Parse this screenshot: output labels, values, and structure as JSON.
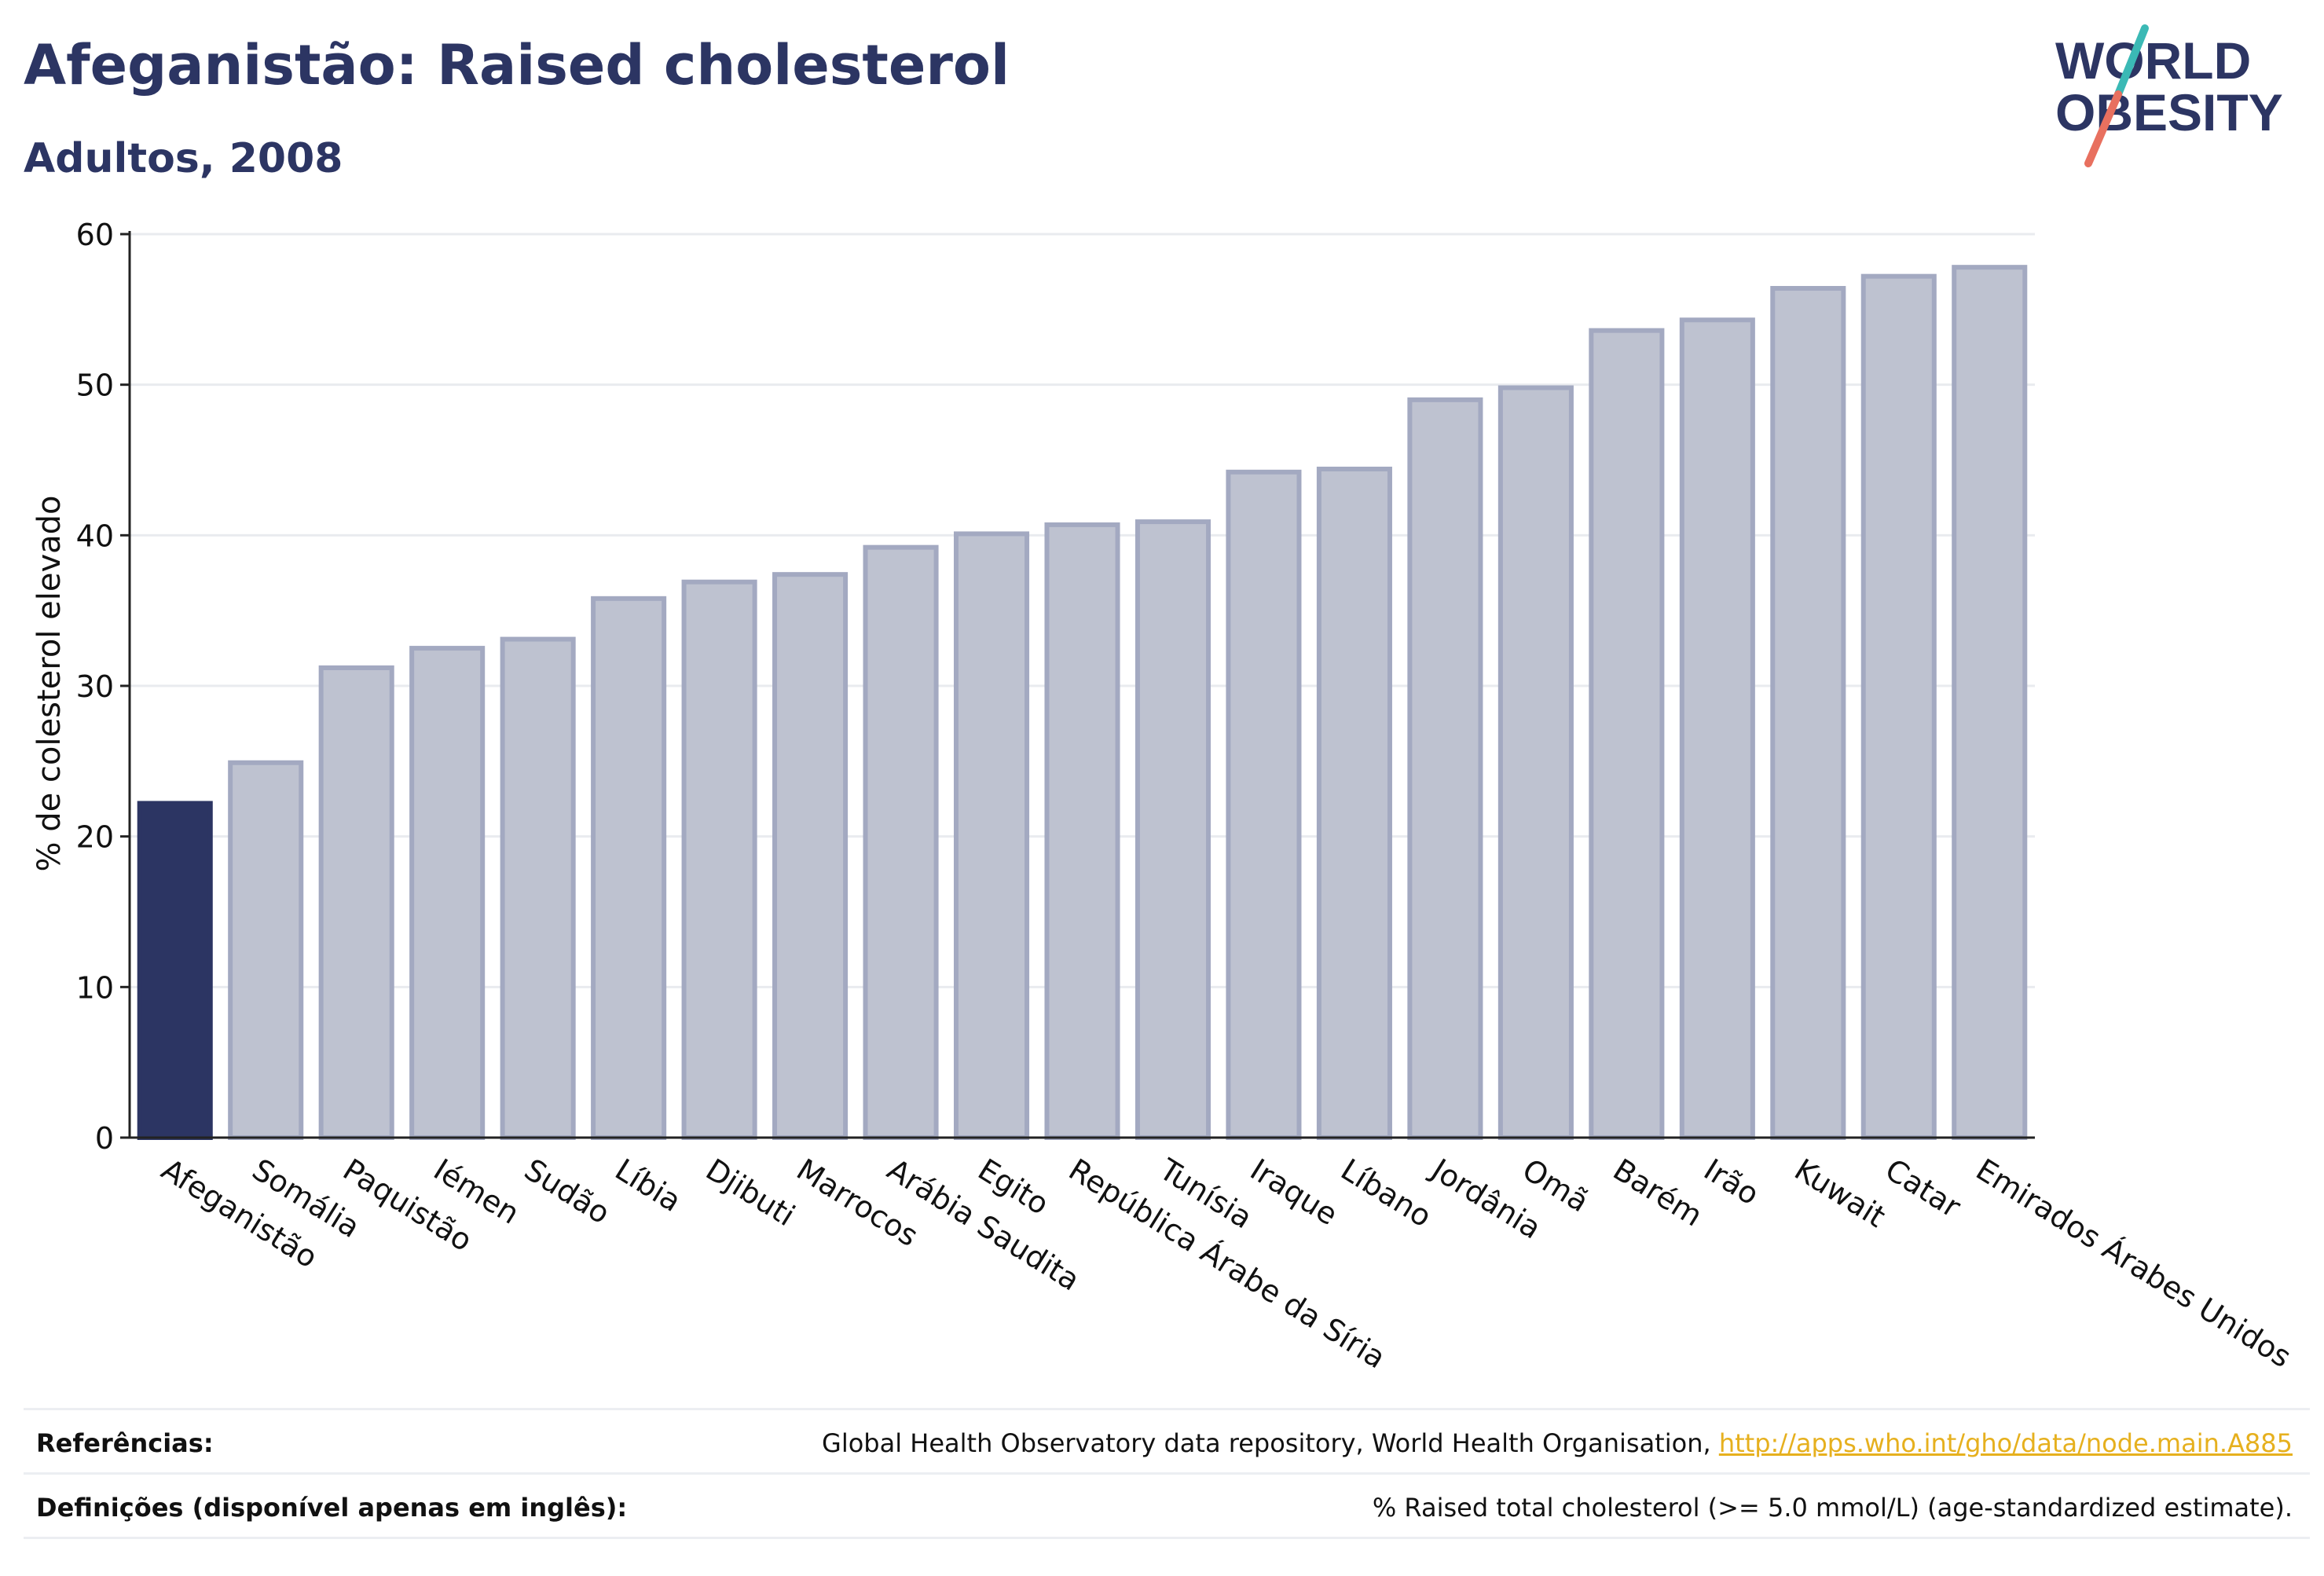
{
  "title": "Afeganistão: Raised cholesterol",
  "subtitle": "Adultos, 2008",
  "logo": {
    "line1": "WORLD",
    "line2": "OBESITY",
    "accent_teal": "#3bb9b5",
    "accent_coral": "#e8705f",
    "text_color": "#2c3563"
  },
  "colors": {
    "highlight": "#2c3563",
    "bar_fill": "#bec2d0",
    "bar_stroke": "#a3a9c1",
    "grid": "#e9ebef"
  },
  "chart_data": {
    "type": "bar",
    "ylabel": "% de colesterol elevado",
    "ylim": [
      0,
      60
    ],
    "yticks": [
      0,
      10,
      20,
      30,
      40,
      50,
      60
    ],
    "grid": true,
    "highlighted_category": "Afeganistão",
    "categories": [
      "Afeganistão",
      "Somália",
      "Paquistão",
      "Iémen",
      "Sudão",
      "Líbia",
      "Djibuti",
      "Marrocos",
      "Arábia Saudita",
      "Egito",
      "República Árabe da Síria",
      "Tunísia",
      "Iraque",
      "Líbano",
      "Jordânia",
      "Omã",
      "Barém",
      "Irão",
      "Kuwait",
      "Catar",
      "Emirados Árabes Unidos"
    ],
    "values": [
      22.2,
      24.9,
      31.2,
      32.5,
      33.1,
      35.8,
      36.9,
      37.4,
      39.2,
      40.1,
      40.7,
      40.9,
      44.2,
      44.4,
      49.0,
      49.8,
      53.6,
      54.3,
      56.4,
      57.2,
      57.8
    ]
  },
  "footer": {
    "references_label": "Referências:",
    "references_text": "Global Health Observatory data repository, World Health Organisation, ",
    "references_link": "http://apps.who.int/gho/data/node.main.A885",
    "definitions_label": "Definições (disponível apenas em inglês):",
    "definitions_text": "% Raised total cholesterol (>= 5.0 mmol/L) (age-standardized estimate)."
  }
}
